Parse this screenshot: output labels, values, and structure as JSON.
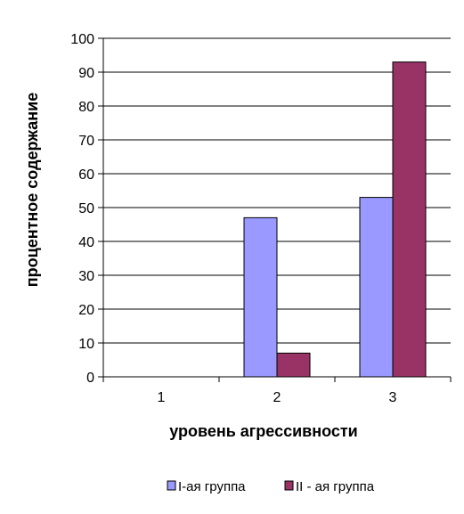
{
  "chart_data": {
    "type": "bar",
    "title": "",
    "xlabel": "уровень агрессивности",
    "ylabel": "процентное содержание",
    "categories": [
      "1",
      "2",
      "3"
    ],
    "ylim": [
      0,
      100
    ],
    "yticks": [
      "0",
      "10",
      "20",
      "30",
      "40",
      "50",
      "60",
      "70",
      "80",
      "90",
      "100"
    ],
    "grid": true,
    "legend_position": "bottom",
    "series": [
      {
        "name": "I-ая группа",
        "values": [
          0,
          47,
          53
        ],
        "color": "#9999ff"
      },
      {
        "name": "II - ая группа",
        "values": [
          0,
          7,
          93
        ],
        "color": "#993366"
      }
    ]
  }
}
